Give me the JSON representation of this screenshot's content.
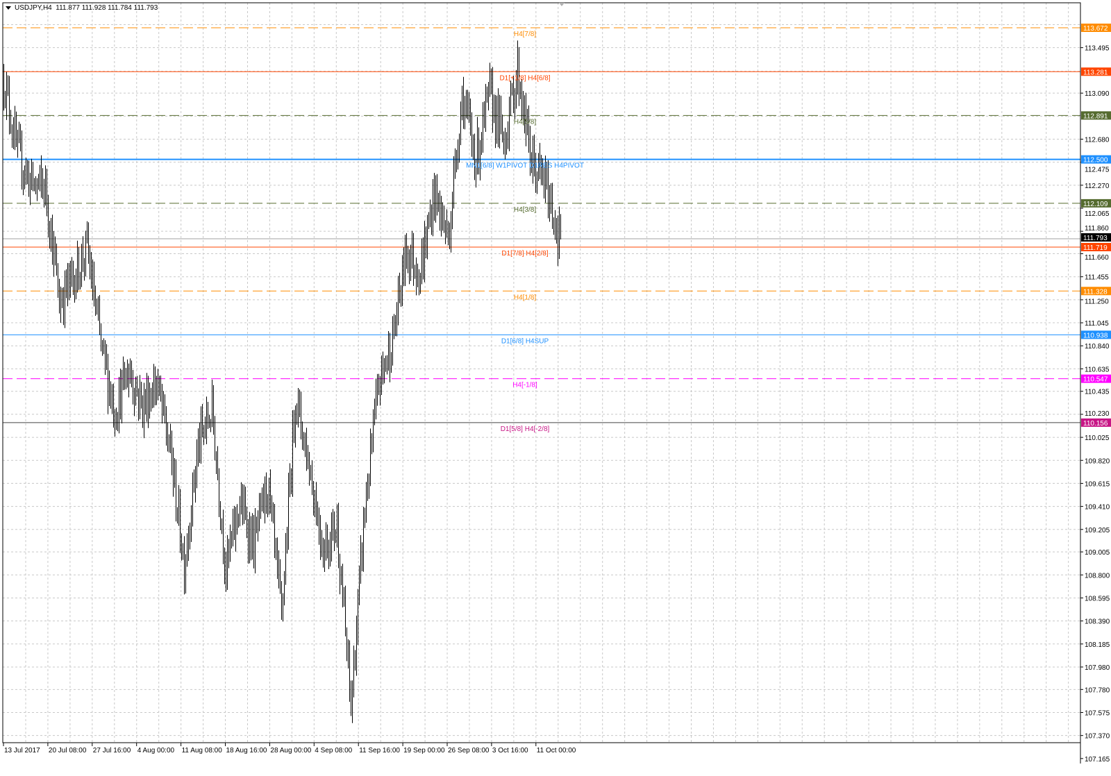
{
  "header": {
    "symbol": "USDJPY,H4",
    "ohlc": "111.877 111.928 111.784 111.793"
  },
  "chart_data": {
    "type": "bar",
    "symbol": "USDJPY",
    "timeframe": "H4",
    "grid": true,
    "ylim": [
      107.165,
      113.75
    ],
    "bar_color": "#000000",
    "approx_close_every_10_bars": [
      113.22,
      112.55,
      112.28,
      112.25,
      111.24,
      111.44,
      111.71,
      110.83,
      110.26,
      110.63,
      110.3,
      110.52,
      109.89,
      108.9,
      109.95,
      110.27,
      108.85,
      109.45,
      109.06,
      109.6,
      108.43,
      110.4,
      109.77,
      109.04,
      109.25,
      107.62,
      109.4,
      110.5,
      110.9,
      111.7,
      111.5,
      112.2,
      111.8,
      113.08,
      112.5,
      113.08,
      112.66,
      113.3,
      112.47,
      112.28,
      111.8
    ],
    "last_close": 111.793,
    "x_tick_labels": [
      "13 Jul 2017",
      "20 Jul 08:00",
      "27 Jul 16:00",
      "4 Aug 00:00",
      "11 Aug 08:00",
      "18 Aug 16:00",
      "28 Aug 00:00",
      "4 Sep 08:00",
      "11 Sep 16:00",
      "19 Sep 00:00",
      "26 Sep 08:00",
      "3 Oct 16:00",
      "11 Oct 00:00"
    ],
    "y_tick_labels": [
      "113.495",
      "113.090",
      "112.680",
      "112.475",
      "112.270",
      "112.065",
      "111.860",
      "111.660",
      "111.455",
      "111.250",
      "111.045",
      "110.840",
      "110.635",
      "110.435",
      "110.230",
      "110.025",
      "109.820",
      "109.615",
      "109.410",
      "109.205",
      "109.005",
      "108.800",
      "108.595",
      "108.390",
      "108.185",
      "107.980",
      "107.780",
      "107.575",
      "107.370",
      "107.165"
    ],
    "levels": [
      {
        "price": "113.672",
        "label": "H4[7/8]",
        "color": "#ff8c00",
        "style": "dashed",
        "text_color": "#ffffff"
      },
      {
        "price": "113.281",
        "label": "D1[+1/8] H4[6/8]",
        "color": "#ff4500",
        "style": "solid",
        "text_color": "#ffffff"
      },
      {
        "price": "112.891",
        "label": "H4[5/8]",
        "color": "#556b2f",
        "style": "dashed",
        "text_color": "#ffffff"
      },
      {
        "price": "112.500",
        "label": "MN1[6/8] W1PIVOT D1RES H4PIVOT",
        "color": "#1e90ff",
        "style": "solid-thick",
        "text_color": "#ffffff"
      },
      {
        "price": "112.109",
        "label": "H4[3/8]",
        "color": "#556b2f",
        "style": "dashed",
        "text_color": "#ffffff"
      },
      {
        "price": "111.719",
        "label": "D1[7/8] H4[2/8]",
        "color": "#ff4500",
        "style": "solid",
        "text_color": "#ffffff"
      },
      {
        "price": "111.328",
        "label": "H4[1/8]",
        "color": "#ff8c00",
        "style": "dashed",
        "text_color": "#ffffff"
      },
      {
        "price": "110.938",
        "label": "D1[6/8] H4SUP",
        "color": "#1e90ff",
        "style": "solid",
        "text_color": "#ffffff"
      },
      {
        "price": "110.547",
        "label": "H4[-1/8]",
        "color": "#ff00ff",
        "style": "dashed",
        "text_color": "#ffffff"
      },
      {
        "price": "110.156",
        "label": "D1[5/8] H4[-2/8]",
        "color": "#c71585",
        "line_color": "#444444",
        "style": "solid",
        "text_color": "#ffffff"
      }
    ],
    "current_price": {
      "price": "111.793",
      "color": "#000000",
      "line_color": "#a0a0a0"
    }
  }
}
